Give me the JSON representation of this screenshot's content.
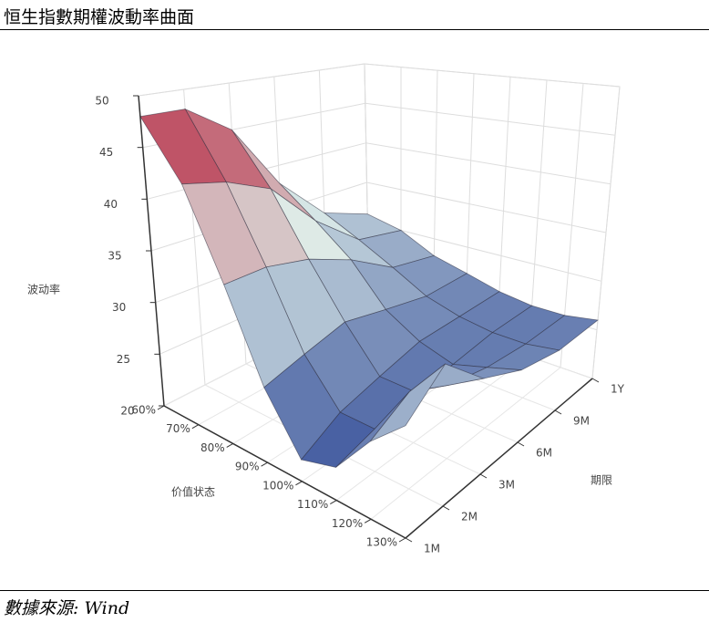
{
  "chart_data": {
    "type": "surface",
    "title": "恒生指數期權波動率曲面",
    "source": "數據來源: Wind",
    "x_label": "价值状态",
    "y_label": "期限",
    "z_label": "波动率",
    "x_categories": [
      "60%",
      "70%",
      "80%",
      "90%",
      "100%",
      "110%",
      "120%",
      "130%"
    ],
    "y_categories": [
      "1M",
      "2M",
      "3M",
      "6M",
      "9M",
      "1Y"
    ],
    "z_values": [
      [
        48,
        48,
        45,
        38,
        33,
        31
      ],
      [
        43,
        42,
        40,
        35,
        31,
        30
      ],
      [
        35,
        35,
        34,
        32,
        29,
        28
      ],
      [
        27,
        28,
        29,
        28,
        27,
        27
      ],
      [
        22,
        24,
        25,
        26,
        26,
        26
      ],
      [
        23,
        24,
        25,
        25,
        25.5,
        25.5
      ],
      [
        27,
        29,
        27,
        26,
        25.5,
        25.5
      ],
      [
        30,
        33,
        29,
        27,
        26,
        26
      ]
    ],
    "zlim": [
      20,
      50
    ],
    "zticks": [
      20,
      25,
      30,
      35,
      40,
      45,
      50
    ],
    "colorscale": [
      "#1f3a8f",
      "#dfeee9",
      "#b00d2b"
    ],
    "grid": true
  }
}
